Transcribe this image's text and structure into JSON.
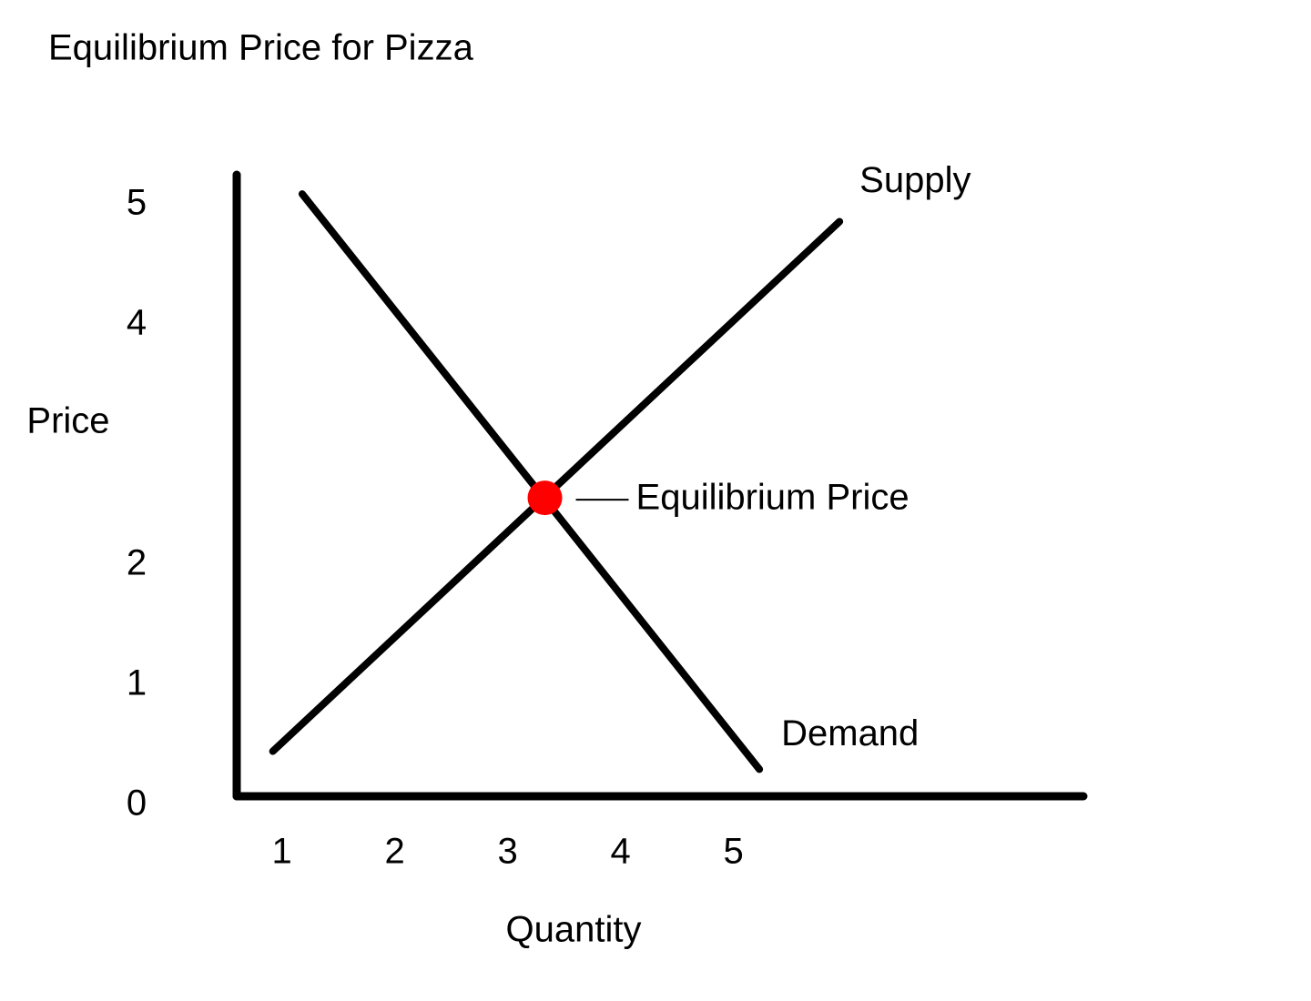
{
  "chart_data": {
    "type": "line",
    "title": "Equilibrium Price for Pizza",
    "x_label": "Quantity",
    "y_label": "Price",
    "xlim": [
      0.6,
      8.1
    ],
    "ylim": [
      0,
      5.25
    ],
    "xticks": [
      1,
      2,
      3,
      4,
      5
    ],
    "yticks": [
      0,
      1,
      2,
      4,
      5
    ],
    "grid": false,
    "series": [
      {
        "name": "Supply",
        "color": "#000000",
        "x": [
          0.92,
          5.94
        ],
        "values": [
          0.45,
          4.86
        ]
      },
      {
        "name": "Demand",
        "color": "#000000",
        "x": [
          1.18,
          5.23
        ],
        "values": [
          5.09,
          0.3
        ]
      }
    ],
    "annotations": [
      {
        "text": "Equilibrium Price",
        "x": 3.33,
        "y": 2.56,
        "color": "#ff0000"
      }
    ]
  }
}
